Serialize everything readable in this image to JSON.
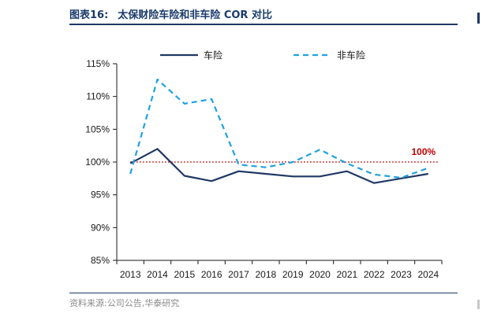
{
  "header": {
    "figure_no": "图表16:",
    "title": "太保财险车险和非车险 COR 对比"
  },
  "footer": {
    "source": "资料来源:公司公告,华泰研究"
  },
  "chart_data": {
    "type": "line",
    "title": "太保财险车险和非车险 COR 对比",
    "xlabel": "",
    "ylabel": "",
    "categories": [
      "2013",
      "2014",
      "2015",
      "2016",
      "2017",
      "2018",
      "2019",
      "2020",
      "2021",
      "2022",
      "2023",
      "2024"
    ],
    "ylim": [
      85,
      115
    ],
    "yticks": [
      85,
      90,
      95,
      100,
      105,
      110,
      115
    ],
    "ytick_labels": [
      "85%",
      "90%",
      "95%",
      "100%",
      "105%",
      "110%",
      "115%"
    ],
    "legend_position": "top",
    "series": [
      {
        "name": "车险",
        "style": "solid",
        "color": "#1f3864",
        "values": [
          99.8,
          102.0,
          97.9,
          97.1,
          98.6,
          98.2,
          97.8,
          97.8,
          98.6,
          96.8,
          97.5,
          98.2
        ]
      },
      {
        "name": "非车险",
        "style": "dashed",
        "color": "#1fa2df",
        "values": [
          98.2,
          112.6,
          108.9,
          109.6,
          99.6,
          99.2,
          100.0,
          101.9,
          99.8,
          98.1,
          97.6,
          99.1
        ]
      }
    ],
    "reference_line": {
      "value": 100,
      "label": "100%",
      "color": "#c00000",
      "style": "dotted"
    }
  }
}
